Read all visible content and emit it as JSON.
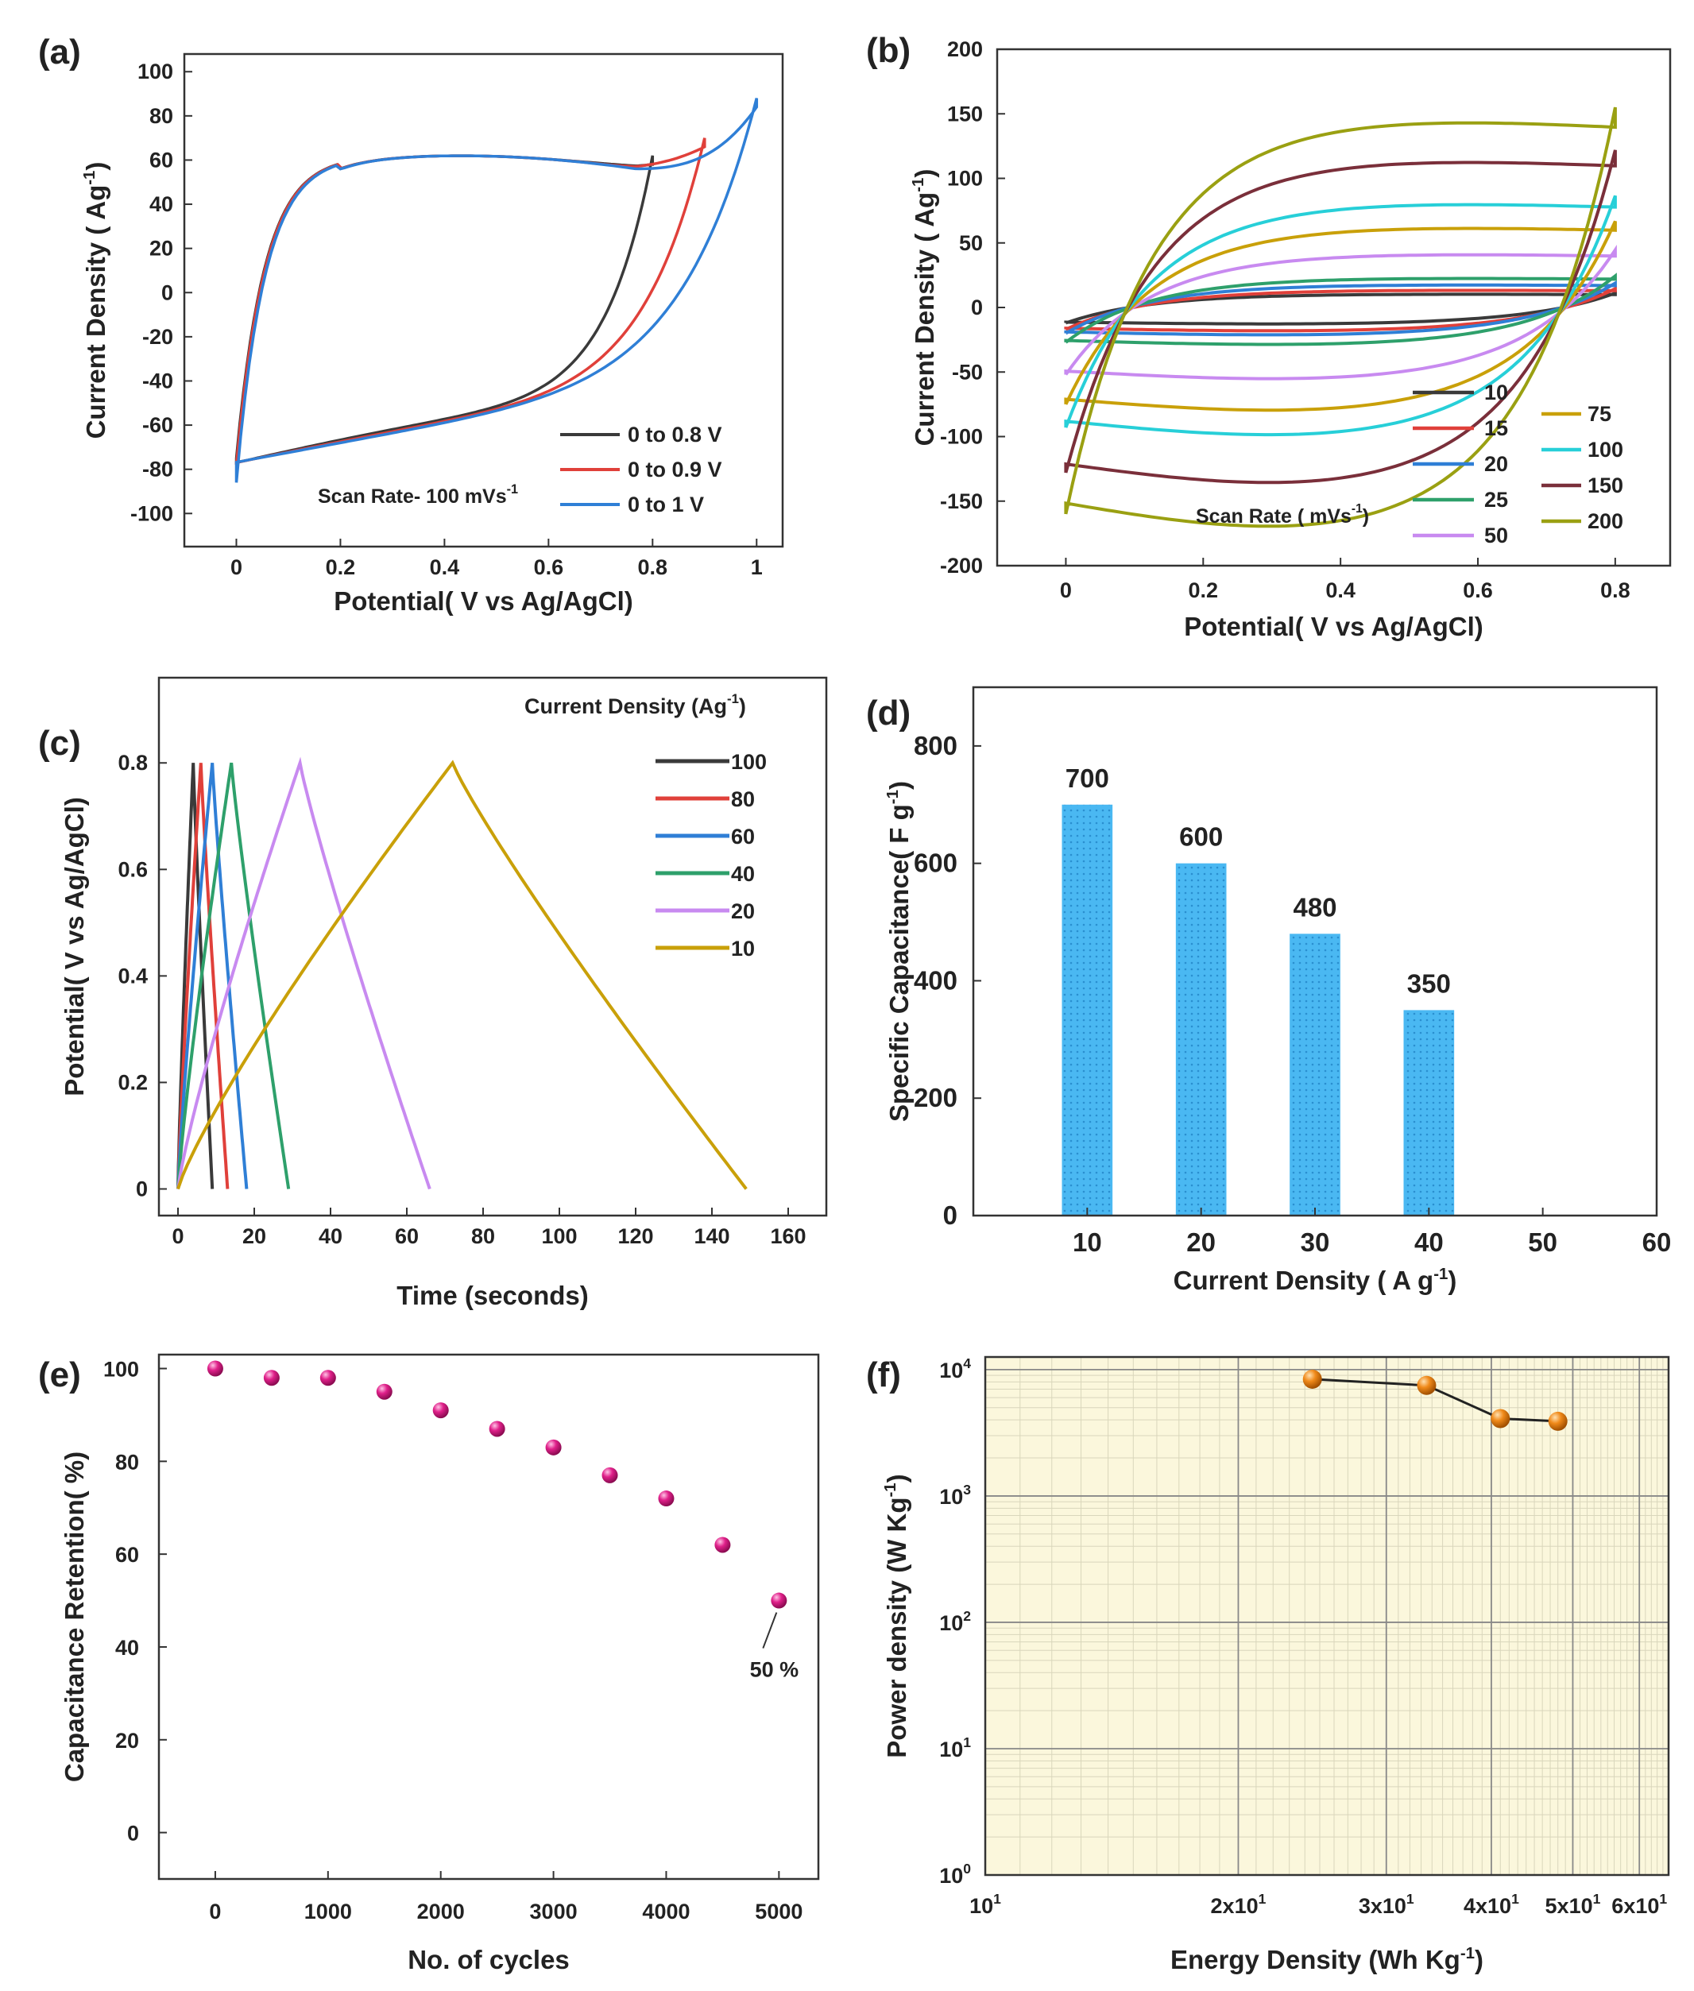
{
  "colors": {
    "black": "#3a3a3a",
    "red": "#e0403a",
    "blue": "#2f7fd6",
    "green": "#2ea06b",
    "purple": "#c88af0",
    "gold": "#c9a009",
    "cyan": "#27cfd8",
    "maroon": "#7a2f3a",
    "olive": "#9aa012",
    "bar": "#4ab8f2",
    "magenta": "#e0208a",
    "orange": "#f08a1a",
    "f_bg": "#fbf7dc"
  },
  "chart_data": [
    {
      "panel": "(a)",
      "type": "line",
      "title": "",
      "xlabel": "Potential( V vs Ag/AgCl)",
      "ylabel": "Current Density ( Ag-1)",
      "xlim": [
        -0.1,
        1.05
      ],
      "ylim": [
        -115,
        108
      ],
      "xticks": [
        "0",
        "0.2",
        "0.4",
        "0.6",
        "0.8",
        "1"
      ],
      "yticks": [
        "100",
        "80",
        "60",
        "40",
        "20",
        "0",
        "-20",
        "-40",
        "-60",
        "-80",
        "-100"
      ],
      "annotation": "Scan Rate- 100 mVs-1",
      "series": [
        {
          "name": "0 to 0.8 V",
          "color": "black",
          "vmax": 0.8,
          "top_end": 62,
          "bot_start": -75
        },
        {
          "name": "0 to 0.9 V",
          "color": "red",
          "vmax": 0.9,
          "top_end": 70,
          "bot_start": -78
        },
        {
          "name": "0 to 1 V",
          "color": "blue",
          "vmax": 1.0,
          "top_end": 88,
          "bot_start": -86
        }
      ]
    },
    {
      "panel": "(b)",
      "type": "line",
      "xlabel": "Potential( V vs Ag/AgCl)",
      "ylabel": "Current Density ( Ag-1)",
      "xlim": [
        -0.1,
        0.88
      ],
      "ylim": [
        -200,
        200
      ],
      "xticks": [
        "0",
        "0.2",
        "0.4",
        "0.6",
        "0.8"
      ],
      "yticks": [
        "200",
        "150",
        "100",
        "50",
        "0",
        "-50",
        "-100",
        "-150",
        "-200"
      ],
      "annotation": "Scan Rate ( mVs-1)",
      "series": [
        {
          "name": "10",
          "color": "black",
          "top": 10,
          "bot": -12
        },
        {
          "name": "15",
          "color": "red",
          "top": 13,
          "bot": -17
        },
        {
          "name": "20",
          "color": "blue",
          "top": 17,
          "bot": -20
        },
        {
          "name": "25",
          "color": "green",
          "top": 22,
          "bot": -27
        },
        {
          "name": "50",
          "color": "purple",
          "top": 40,
          "bot": -52
        },
        {
          "name": "75",
          "color": "gold",
          "top": 60,
          "bot": -75
        },
        {
          "name": "100",
          "color": "cyan",
          "top": 78,
          "bot": -93
        },
        {
          "name": "150",
          "color": "maroon",
          "top": 110,
          "bot": -128
        },
        {
          "name": "200",
          "color": "olive",
          "top": 140,
          "bot": -160
        }
      ]
    },
    {
      "panel": "(c)",
      "type": "line",
      "xlabel": "Time (seconds)",
      "ylabel": "Potential( V vs Ag/AgCl)",
      "xlim": [
        -5,
        170
      ],
      "ylim": [
        -0.05,
        0.96
      ],
      "xticks": [
        "0",
        "20",
        "40",
        "60",
        "80",
        "100",
        "120",
        "140",
        "160"
      ],
      "yticks": [
        "0.8",
        "0.6",
        "0.4",
        "0.2",
        "0"
      ],
      "legend_title": "Current Density (Ag-1)",
      "series": [
        {
          "name": "100",
          "color": "black",
          "tc": 4,
          "td": 9
        },
        {
          "name": "80",
          "color": "red",
          "tc": 6,
          "td": 13
        },
        {
          "name": "60",
          "color": "blue",
          "tc": 9,
          "td": 18
        },
        {
          "name": "40",
          "color": "green",
          "tc": 14,
          "td": 29
        },
        {
          "name": "20",
          "color": "purple",
          "tc": 32,
          "td": 66
        },
        {
          "name": "10",
          "color": "gold",
          "tc": 72,
          "td": 149
        }
      ]
    },
    {
      "panel": "(d)",
      "type": "bar",
      "xlabel": "Current Density ( A g-1)",
      "ylabel": "Specific Capacitance( F g-1)",
      "xlim": [
        0,
        60
      ],
      "ylim": [
        0,
        900
      ],
      "xticks": [
        "10",
        "20",
        "30",
        "40",
        "50",
        "60"
      ],
      "yticks": [
        "800",
        "600",
        "400",
        "200",
        "0"
      ],
      "categories": [
        10,
        20,
        30,
        40
      ],
      "values": [
        700,
        600,
        480,
        350
      ],
      "labels": [
        "700",
        "600",
        "480",
        "350"
      ]
    },
    {
      "panel": "(e)",
      "type": "scatter",
      "xlabel": "No. of cycles",
      "ylabel": "Capacitance Retention( %)",
      "xlim": [
        -500,
        5350
      ],
      "ylim": [
        -10,
        103
      ],
      "xticks": [
        "0",
        "1000",
        "2000",
        "3000",
        "4000",
        "5000"
      ],
      "yticks": [
        "100",
        "80",
        "60",
        "40",
        "20",
        "0"
      ],
      "x": [
        0,
        500,
        1000,
        1500,
        2000,
        2500,
        3000,
        3500,
        4000,
        4500,
        5000
      ],
      "y": [
        100,
        98,
        98,
        95,
        91,
        87,
        83,
        77,
        72,
        62,
        50
      ],
      "annotation": "50 %"
    },
    {
      "panel": "(f)",
      "type": "line",
      "xlabel": "Energy Density (Wh Kg-1)",
      "ylabel": "Power density (W Kg-1)",
      "xlim": [
        10,
        65
      ],
      "ylim": [
        1,
        10000
      ],
      "xticks": [
        "101",
        "2x101",
        "3x101",
        "4x101",
        "5x101",
        "6x101"
      ],
      "yticks": [
        "104",
        "103",
        "102",
        "101",
        "100"
      ],
      "x": [
        24.5,
        33.5,
        41,
        48
      ],
      "y": [
        8400,
        7500,
        4100,
        3900
      ]
    }
  ]
}
